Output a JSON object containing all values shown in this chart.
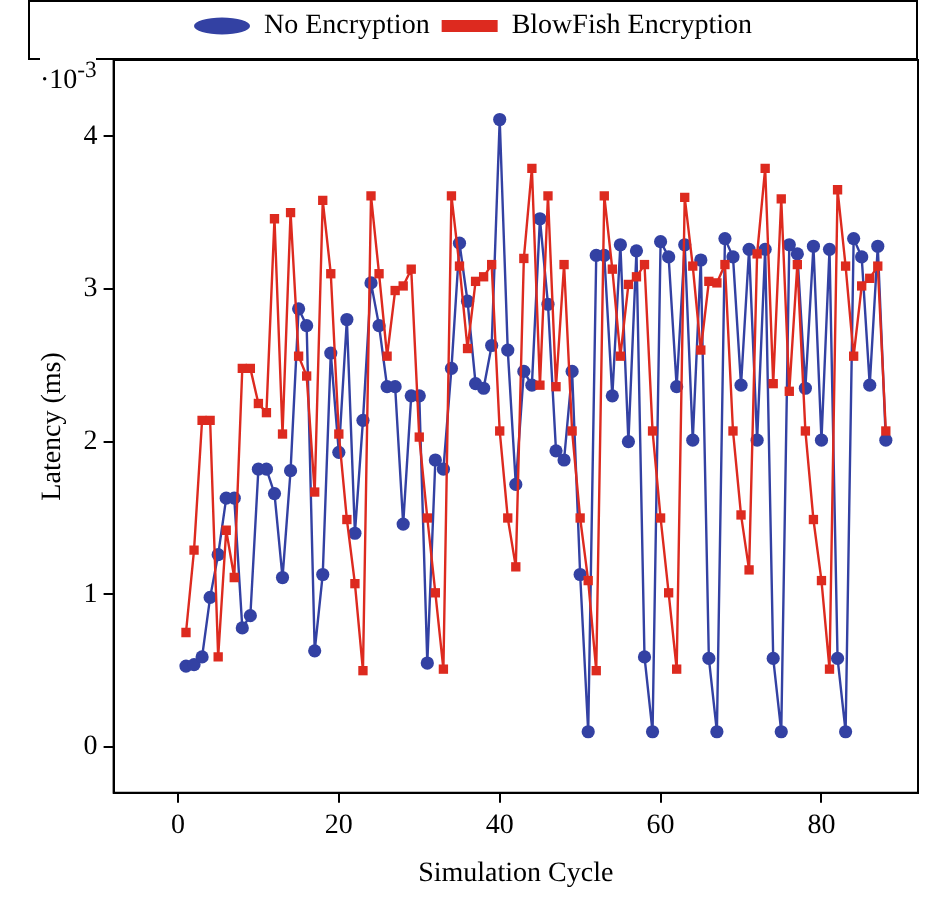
{
  "chart_data": {
    "type": "line",
    "xlabel": "Simulation Cycle",
    "ylabel": "Latency (ms)",
    "annotations": [
      "·10$^{-3}$"
    ],
    "x": [
      1,
      2,
      3,
      4,
      5,
      6,
      7,
      8,
      9,
      10,
      11,
      12,
      13,
      14,
      15,
      16,
      17,
      18,
      19,
      20,
      21,
      22,
      23,
      24,
      25,
      26,
      27,
      28,
      29,
      30,
      31,
      32,
      33,
      34,
      35,
      36,
      37,
      38,
      39,
      40,
      41,
      42,
      43,
      44,
      45,
      46,
      47,
      48,
      49,
      50,
      51,
      52,
      53,
      54,
      55,
      56,
      57,
      58,
      59,
      60,
      61,
      62,
      63,
      64,
      65,
      66,
      67,
      68,
      69,
      70,
      71,
      72,
      73,
      74,
      75,
      76,
      77,
      78,
      79,
      80,
      81,
      82,
      83,
      84,
      85,
      86,
      87,
      88
    ],
    "series": [
      {
        "name": "No Encryption",
        "color": "#3341a3",
        "marker": "circle",
        "values": [
          0.53,
          0.54,
          0.59,
          0.98,
          1.26,
          1.63,
          1.63,
          0.78,
          0.86,
          1.82,
          1.82,
          1.66,
          1.11,
          1.81,
          2.87,
          2.76,
          0.63,
          1.13,
          2.58,
          1.93,
          2.8,
          1.4,
          2.14,
          3.04,
          2.76,
          2.36,
          2.36,
          1.46,
          2.3,
          2.3,
          0.55,
          1.88,
          1.82,
          2.48,
          3.3,
          2.92,
          2.38,
          2.35,
          2.63,
          4.11,
          2.6,
          1.72,
          2.46,
          2.37,
          3.46,
          2.9,
          1.94,
          1.88,
          2.46,
          1.13,
          0.1,
          3.22,
          3.22,
          2.3,
          3.29,
          2.0,
          3.25,
          0.59,
          0.1,
          3.31,
          3.21,
          2.36,
          3.29,
          2.01,
          3.19,
          0.58,
          0.1,
          3.33,
          3.21,
          2.37,
          3.26,
          2.01,
          3.26,
          0.58,
          0.1,
          3.29,
          3.23,
          2.35,
          3.28,
          2.01,
          3.26,
          0.58,
          0.1,
          3.33,
          3.21,
          2.37,
          3.28,
          2.01
        ]
      },
      {
        "name": "BlowFish Encryption",
        "color": "#dd2a1f",
        "marker": "square",
        "values": [
          0.75,
          1.29,
          2.14,
          2.14,
          0.59,
          1.42,
          1.11,
          2.48,
          2.48,
          2.25,
          2.19,
          3.46,
          2.05,
          3.5,
          2.56,
          2.43,
          1.67,
          3.58,
          3.1,
          2.05,
          1.49,
          1.07,
          0.5,
          3.61,
          3.1,
          2.56,
          2.99,
          3.02,
          3.13,
          2.03,
          1.5,
          1.01,
          0.51,
          3.61,
          3.15,
          2.61,
          3.05,
          3.08,
          3.16,
          2.07,
          1.5,
          1.18,
          3.2,
          3.79,
          2.37,
          3.61,
          2.36,
          3.16,
          2.07,
          1.5,
          1.09,
          0.5,
          3.61,
          3.13,
          2.56,
          3.03,
          3.08,
          3.16,
          2.07,
          1.5,
          1.01,
          0.51,
          3.6,
          3.15,
          2.6,
          3.05,
          3.04,
          3.16,
          2.07,
          1.52,
          1.16,
          3.23,
          3.79,
          2.38,
          3.59,
          2.33,
          3.16,
          2.07,
          1.49,
          1.09,
          0.51,
          3.65,
          3.15,
          2.56,
          3.02,
          3.07,
          3.15,
          2.07
        ]
      }
    ],
    "xlim": [
      -8,
      92
    ],
    "xticks": [
      0,
      20,
      40,
      60,
      80
    ],
    "ylim": [
      -0.3,
      4.5
    ],
    "yticks": [
      0,
      1,
      2,
      3,
      4
    ],
    "grid": false,
    "legend": "top"
  }
}
